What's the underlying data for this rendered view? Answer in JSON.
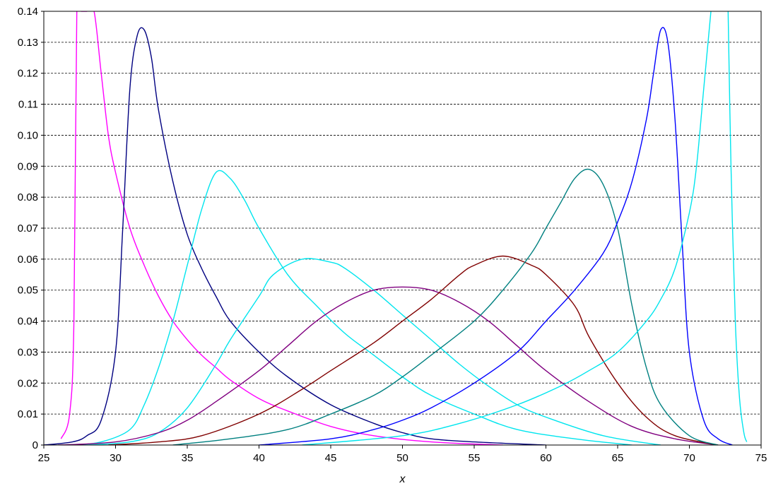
{
  "chart_data": {
    "type": "line",
    "title": "",
    "xlabel": "x",
    "ylabel": "",
    "xlim": [
      25,
      75
    ],
    "ylim": [
      0,
      0.14
    ],
    "x_ticks": [
      "25",
      "30",
      "35",
      "40",
      "45",
      "50",
      "55",
      "60",
      "65",
      "70",
      "75"
    ],
    "y_ticks": [
      "0",
      "0.01",
      "0.02",
      "0.03",
      "0.04",
      "0.05",
      "0.06",
      "0.07",
      "0.08",
      "0.09",
      "0.10",
      "0.11",
      "0.12",
      "0.13",
      "0.14"
    ],
    "grid": "horizontal-dashed",
    "legend": "none",
    "series": [
      {
        "color": "#ff00ff",
        "x": [
          26.2,
          26.8,
          27.1,
          27.3,
          27.6,
          28.0,
          28.5,
          29.0,
          29.5,
          30,
          31,
          32,
          33,
          34,
          35,
          36,
          37,
          38,
          40,
          42,
          45,
          48,
          52,
          57
        ],
        "y": [
          0.002,
          0.01,
          0.04,
          0.14,
          0.14,
          0.14,
          0.14,
          0.12,
          0.1,
          0.088,
          0.07,
          0.058,
          0.048,
          0.04,
          0.034,
          0.029,
          0.025,
          0.021,
          0.015,
          0.011,
          0.006,
          0.003,
          0.001,
          0
        ]
      },
      {
        "color": "#000080",
        "x": [
          25,
          27,
          28,
          29,
          30,
          30.5,
          31,
          31.5,
          32,
          32.5,
          33,
          34,
          35,
          36,
          37,
          38,
          40,
          42,
          45,
          48,
          50,
          52,
          55,
          60
        ],
        "y": [
          0,
          0.001,
          0.003,
          0.008,
          0.03,
          0.07,
          0.115,
          0.132,
          0.134,
          0.125,
          0.108,
          0.085,
          0.068,
          0.057,
          0.048,
          0.04,
          0.03,
          0.022,
          0.013,
          0.007,
          0.004,
          0.002,
          0.001,
          0
        ]
      },
      {
        "color": "#00e5ee",
        "x": [
          27,
          29,
          31,
          32,
          33,
          34,
          35,
          36,
          37,
          38,
          39,
          40,
          42,
          44,
          46,
          48,
          50,
          52,
          55,
          58,
          62,
          66
        ],
        "y": [
          0,
          0.001,
          0.005,
          0.013,
          0.025,
          0.04,
          0.058,
          0.076,
          0.088,
          0.086,
          0.079,
          0.07,
          0.055,
          0.045,
          0.036,
          0.029,
          0.022,
          0.016,
          0.01,
          0.005,
          0.002,
          0
        ]
      },
      {
        "color": "#00e5ee",
        "x": [
          28,
          31,
          33,
          35,
          37,
          38,
          40,
          41,
          43,
          45,
          46,
          48,
          50,
          52,
          54,
          56,
          58,
          60,
          64,
          68
        ],
        "y": [
          0,
          0.001,
          0.004,
          0.012,
          0.026,
          0.034,
          0.048,
          0.055,
          0.06,
          0.059,
          0.057,
          0.05,
          0.042,
          0.034,
          0.026,
          0.019,
          0.013,
          0.009,
          0.003,
          0
        ]
      },
      {
        "color": "#800080",
        "x": [
          26,
          30,
          33,
          35,
          37,
          40,
          42,
          44,
          46,
          48,
          50,
          52,
          54,
          56,
          58,
          60,
          63,
          66,
          69,
          72
        ],
        "y": [
          0,
          0.001,
          0.004,
          0.008,
          0.014,
          0.024,
          0.032,
          0.04,
          0.046,
          0.05,
          0.051,
          0.05,
          0.046,
          0.04,
          0.032,
          0.024,
          0.014,
          0.006,
          0.002,
          0
        ]
      },
      {
        "color": "#800000",
        "x": [
          29.5,
          33,
          36,
          40,
          43,
          45,
          48,
          50,
          52,
          54,
          55,
          57,
          59,
          60,
          62,
          63,
          65,
          67,
          69,
          72
        ],
        "y": [
          0,
          0.001,
          0.003,
          0.01,
          0.018,
          0.024,
          0.033,
          0.04,
          0.047,
          0.055,
          0.058,
          0.061,
          0.058,
          0.055,
          0.045,
          0.035,
          0.02,
          0.009,
          0.003,
          0
        ]
      },
      {
        "color": "#008080",
        "x": [
          34,
          38,
          42,
          45,
          48,
          50,
          52,
          55,
          57,
          59,
          60,
          61,
          62,
          63,
          64,
          65,
          66,
          67,
          68,
          70,
          72
        ],
        "y": [
          0,
          0.002,
          0.005,
          0.01,
          0.016,
          0.022,
          0.029,
          0.04,
          0.05,
          0.062,
          0.07,
          0.078,
          0.086,
          0.089,
          0.084,
          0.07,
          0.045,
          0.025,
          0.013,
          0.003,
          0
        ]
      },
      {
        "color": "#0000ff",
        "x": [
          40,
          45,
          48,
          50,
          52,
          55,
          58,
          60,
          62,
          64,
          65,
          66,
          67,
          67.5,
          68,
          68.5,
          69,
          69.5,
          70,
          71,
          72,
          73
        ],
        "y": [
          0,
          0.002,
          0.005,
          0.008,
          0.012,
          0.02,
          0.03,
          0.04,
          0.05,
          0.062,
          0.072,
          0.085,
          0.105,
          0.12,
          0.134,
          0.13,
          0.105,
          0.065,
          0.03,
          0.008,
          0.002,
          0
        ]
      },
      {
        "color": "#00e5ee",
        "x": [
          43,
          50,
          54,
          58,
          61,
          63,
          65,
          67,
          68,
          69,
          70,
          70.5,
          71,
          71.5
        ],
        "y": [
          0,
          0.003,
          0.007,
          0.013,
          0.019,
          0.024,
          0.03,
          0.04,
          0.047,
          0.057,
          0.075,
          0.09,
          0.115,
          0.14
        ]
      },
      {
        "color": "#00e5ee",
        "x": [
          72.7,
          72.9,
          73.2,
          73.5,
          73.8,
          74.0
        ],
        "y": [
          0.14,
          0.09,
          0.04,
          0.015,
          0.004,
          0.001
        ]
      }
    ]
  }
}
